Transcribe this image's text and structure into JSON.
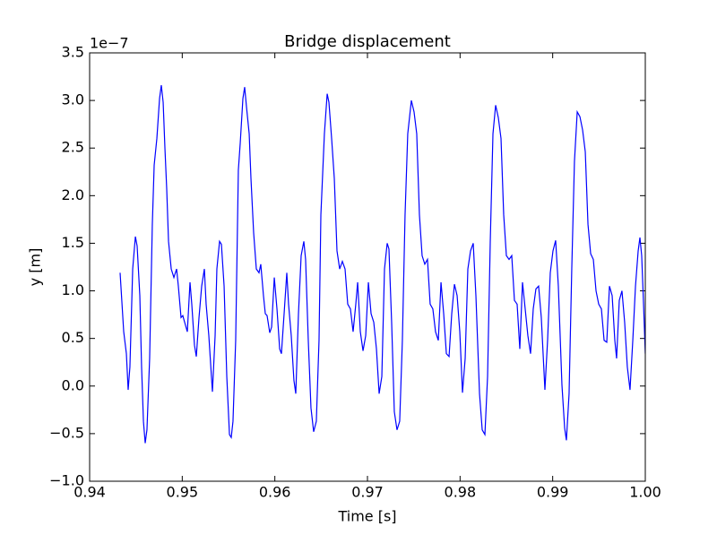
{
  "chart_data": {
    "type": "line",
    "title": "Bridge displacement",
    "x_label": "Time [s]",
    "y_label": "y [m]",
    "y_offset_label": "1e−7",
    "x": [
      0.94329,
      0.94368,
      0.94397,
      0.94416,
      0.94435,
      0.94465,
      0.94494,
      0.94513,
      0.94542,
      0.94561,
      0.94581,
      0.946,
      0.94619,
      0.94648,
      0.94677,
      0.94697,
      0.94726,
      0.94755,
      0.94774,
      0.94794,
      0.94813,
      0.94832,
      0.94852,
      0.94881,
      0.9491,
      0.94939,
      0.94958,
      0.94987,
      0.95006,
      0.95026,
      0.95055,
      0.95084,
      0.95103,
      0.95132,
      0.95152,
      0.95181,
      0.9521,
      0.95239,
      0.95258,
      0.95287,
      0.95326,
      0.95355,
      0.95374,
      0.95403,
      0.95423,
      0.95452,
      0.95481,
      0.9551,
      0.95529,
      0.95548,
      0.95577,
      0.95606,
      0.95626,
      0.95655,
      0.95674,
      0.95694,
      0.95723,
      0.95742,
      0.95771,
      0.958,
      0.95829,
      0.95848,
      0.95877,
      0.95897,
      0.95916,
      0.95945,
      0.95965,
      0.95994,
      0.96023,
      0.96052,
      0.96071,
      0.961,
      0.96129,
      0.96148,
      0.96177,
      0.96206,
      0.96226,
      0.96255,
      0.96284,
      0.96313,
      0.96332,
      0.96361,
      0.9639,
      0.96419,
      0.96448,
      0.96477,
      0.96497,
      0.96535,
      0.96565,
      0.96584,
      0.96613,
      0.96642,
      0.96671,
      0.967,
      0.96729,
      0.96758,
      0.96787,
      0.96816,
      0.96845,
      0.96874,
      0.96894,
      0.96923,
      0.96952,
      0.96981,
      0.9701,
      0.97039,
      0.97068,
      0.97097,
      0.97126,
      0.97155,
      0.97184,
      0.97213,
      0.97232,
      0.97261,
      0.9729,
      0.97319,
      0.97348,
      0.97377,
      0.97406,
      0.97435,
      0.97474,
      0.97503,
      0.97532,
      0.97561,
      0.9759,
      0.97619,
      0.97648,
      0.97677,
      0.97706,
      0.97735,
      0.97765,
      0.97794,
      0.97823,
      0.97852,
      0.97881,
      0.9791,
      0.97939,
      0.97968,
      0.97997,
      0.98026,
      0.98055,
      0.98084,
      0.98113,
      0.98142,
      0.98171,
      0.9821,
      0.98239,
      0.98268,
      0.98297,
      0.98326,
      0.98355,
      0.98384,
      0.98413,
      0.98442,
      0.98471,
      0.985,
      0.98529,
      0.98558,
      0.98587,
      0.98616,
      0.98645,
      0.98674,
      0.98703,
      0.98732,
      0.98761,
      0.9879,
      0.98819,
      0.98848,
      0.98877,
      0.98916,
      0.98945,
      0.98974,
      0.99003,
      0.99032,
      0.99061,
      0.991,
      0.99129,
      0.99148,
      0.99177,
      0.99206,
      0.99235,
      0.99265,
      0.99294,
      0.99323,
      0.99352,
      0.99381,
      0.9941,
      0.99439,
      0.99468,
      0.99497,
      0.99526,
      0.99555,
      0.99584,
      0.99613,
      0.99642,
      0.99671,
      0.9969,
      0.99719,
      0.99748,
      0.99777,
      0.99806,
      0.99835,
      0.99865,
      0.99894,
      0.99923,
      0.99942,
      0.99961,
      0.99981,
      1.0
    ],
    "series": [
      {
        "color": "#0000ff",
        "values": [
          1.19,
          0.57,
          0.34,
          -0.04,
          0.2,
          1.23,
          1.57,
          1.47,
          0.95,
          0.2,
          -0.37,
          -0.6,
          -0.46,
          0.29,
          1.7,
          2.32,
          2.6,
          3.02,
          3.16,
          2.98,
          2.5,
          2.08,
          1.52,
          1.23,
          1.14,
          1.23,
          1.05,
          0.72,
          0.74,
          0.67,
          0.57,
          1.09,
          0.86,
          0.43,
          0.31,
          0.72,
          1.05,
          1.23,
          0.86,
          0.53,
          -0.06,
          0.53,
          1.23,
          1.52,
          1.49,
          1.05,
          0.1,
          -0.51,
          -0.54,
          -0.37,
          0.48,
          2.27,
          2.55,
          3.02,
          3.14,
          2.93,
          2.65,
          2.18,
          1.61,
          1.23,
          1.19,
          1.28,
          0.95,
          0.76,
          0.74,
          0.56,
          0.62,
          1.14,
          0.81,
          0.39,
          0.34,
          0.76,
          1.19,
          0.86,
          0.53,
          0.06,
          -0.08,
          0.76,
          1.37,
          1.52,
          1.33,
          0.48,
          -0.23,
          -0.48,
          -0.37,
          0.48,
          1.8,
          2.65,
          3.07,
          2.98,
          2.6,
          2.18,
          1.42,
          1.23,
          1.31,
          1.23,
          0.86,
          0.81,
          0.57,
          0.86,
          1.09,
          0.57,
          0.37,
          0.53,
          1.09,
          0.76,
          0.67,
          0.39,
          -0.08,
          0.1,
          1.23,
          1.5,
          1.44,
          0.67,
          -0.27,
          -0.46,
          -0.37,
          0.48,
          1.8,
          2.65,
          3.0,
          2.88,
          2.65,
          1.8,
          1.37,
          1.28,
          1.33,
          0.86,
          0.81,
          0.57,
          0.48,
          1.09,
          0.76,
          0.34,
          0.31,
          0.76,
          1.07,
          0.95,
          0.57,
          -0.07,
          0.29,
          1.23,
          1.42,
          1.5,
          0.95,
          -0.08,
          -0.46,
          -0.51,
          0.1,
          1.52,
          2.65,
          2.95,
          2.82,
          2.6,
          1.8,
          1.37,
          1.33,
          1.37,
          0.9,
          0.86,
          0.39,
          1.09,
          0.81,
          0.53,
          0.34,
          0.81,
          1.02,
          1.05,
          0.72,
          -0.04,
          0.48,
          1.19,
          1.42,
          1.53,
          1.05,
          0.01,
          -0.44,
          -0.57,
          -0.08,
          1.23,
          2.36,
          2.88,
          2.83,
          2.69,
          2.46,
          1.7,
          1.39,
          1.33,
          1.0,
          0.86,
          0.81,
          0.48,
          0.46,
          1.05,
          0.95,
          0.48,
          0.29,
          0.9,
          1.0,
          0.67,
          0.2,
          -0.04,
          0.48,
          1.05,
          1.42,
          1.56,
          1.37,
          0.86,
          0.34
        ]
      }
    ],
    "xlim": [
      0.94,
      1.0
    ],
    "xticks": [
      0.94,
      0.95,
      0.96,
      0.97,
      0.98,
      0.99,
      {
        "value": 1.0,
        "label": "1.00"
      }
    ],
    "ylim": [
      -1.0,
      3.5
    ],
    "yticks": [
      {
        "value": -1.0,
        "label": "−1.0"
      },
      {
        "value": -0.5,
        "label": "−0.5"
      },
      {
        "value": 0,
        "label": "0.0"
      },
      0.5,
      {
        "value": 1.0,
        "label": "1.0"
      },
      1.5,
      {
        "value": 2.0,
        "label": "2.0"
      },
      2.5,
      {
        "value": 3.0,
        "label": "3.0"
      },
      3.5
    ]
  }
}
